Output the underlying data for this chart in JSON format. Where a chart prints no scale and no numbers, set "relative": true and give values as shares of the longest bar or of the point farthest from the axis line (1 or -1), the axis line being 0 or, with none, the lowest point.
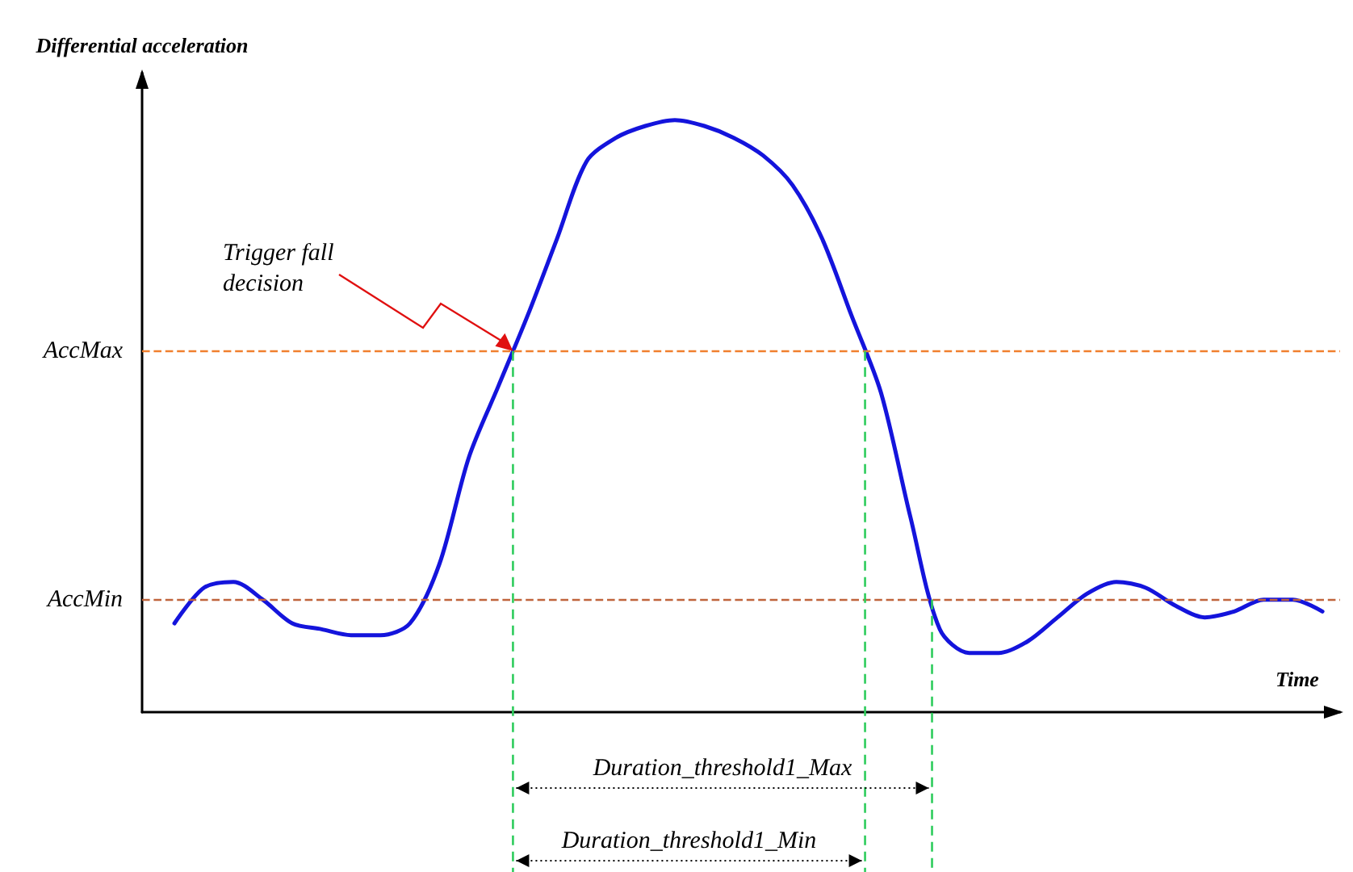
{
  "chart_data": {
    "type": "line",
    "relative": true,
    "xlabel": "Time",
    "ylabel": "Differential acceleration",
    "categories": [
      null,
      null,
      null,
      null,
      null,
      null,
      null,
      null,
      null,
      null,
      null,
      null,
      null,
      null,
      null,
      null,
      null,
      null,
      null,
      null,
      null,
      null,
      null,
      null,
      null,
      null,
      null,
      null,
      null,
      null,
      null,
      null,
      null,
      null,
      null,
      null,
      null,
      null,
      null,
      null
    ],
    "series": [
      {
        "color": "#1414dc",
        "values": [
          0.15,
          0.21,
          0.22,
          0.19,
          0.15,
          0.14,
          0.13,
          0.13,
          0.15,
          0.25,
          0.43,
          0.55,
          0.67,
          0.8,
          0.93,
          0.97,
          0.99,
          1.0,
          0.99,
          0.97,
          0.94,
          0.89,
          0.8,
          0.67,
          0.54,
          0.33,
          0.14,
          0.1,
          0.1,
          0.12,
          0.16,
          0.2,
          0.22,
          0.21,
          0.18,
          0.16,
          0.17,
          0.19,
          0.19,
          0.17
        ]
      }
    ],
    "ref_lines": [
      {
        "axis": "y",
        "value": 0.61,
        "label": "AccMax",
        "color": "#f07f2e",
        "line_style": "dashed"
      },
      {
        "axis": "y",
        "value": 0.19,
        "label": "AccMin",
        "color": "#c0643c",
        "line_style": "dashed"
      }
    ],
    "annotations": [
      "Trigger fall decision",
      "Duration_threshold1_Max",
      "Duration_threshold1_Min"
    ],
    "marker": "none",
    "line_style": "solid"
  }
}
